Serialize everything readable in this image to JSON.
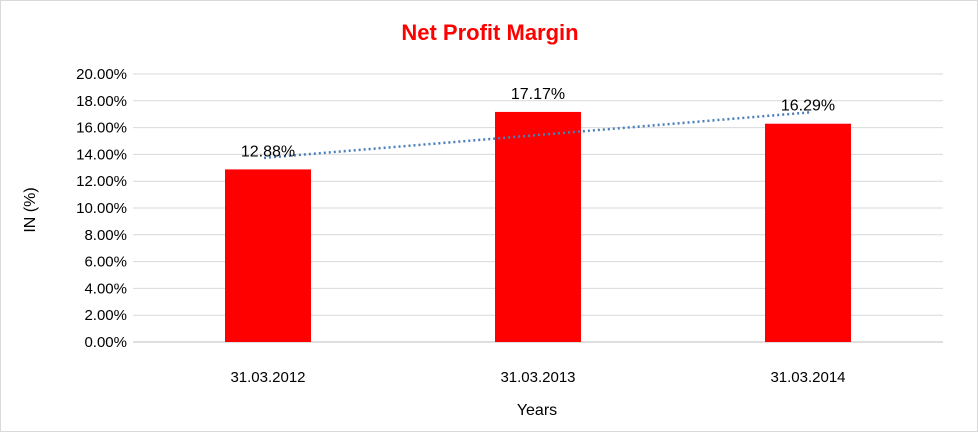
{
  "chart_data": {
    "type": "bar",
    "title": "Net Profit Margin",
    "xlabel": "Years",
    "ylabel": "IN (%)",
    "categories": [
      "31.03.2012",
      "31.03.2013",
      "31.03.2014"
    ],
    "values": [
      12.88,
      17.17,
      16.29
    ],
    "data_labels": [
      "12.88%",
      "17.17%",
      "16.29%"
    ],
    "ylim": [
      0,
      20
    ],
    "yticks": [
      0,
      2,
      4,
      6,
      8,
      10,
      12,
      14,
      16,
      18,
      20
    ],
    "ytick_labels": [
      "0.00%",
      "2.00%",
      "4.00%",
      "6.00%",
      "8.00%",
      "10.00%",
      "12.00%",
      "14.00%",
      "16.00%",
      "18.00%",
      "20.00%"
    ],
    "trendline": "linear",
    "grid": true,
    "legend": "none",
    "colors": {
      "bar": "#ff0000",
      "title": "#ff0000",
      "trendline": "#4a7ebb",
      "grid": "#d9d9d9",
      "axis": "#bfbfbf"
    }
  }
}
